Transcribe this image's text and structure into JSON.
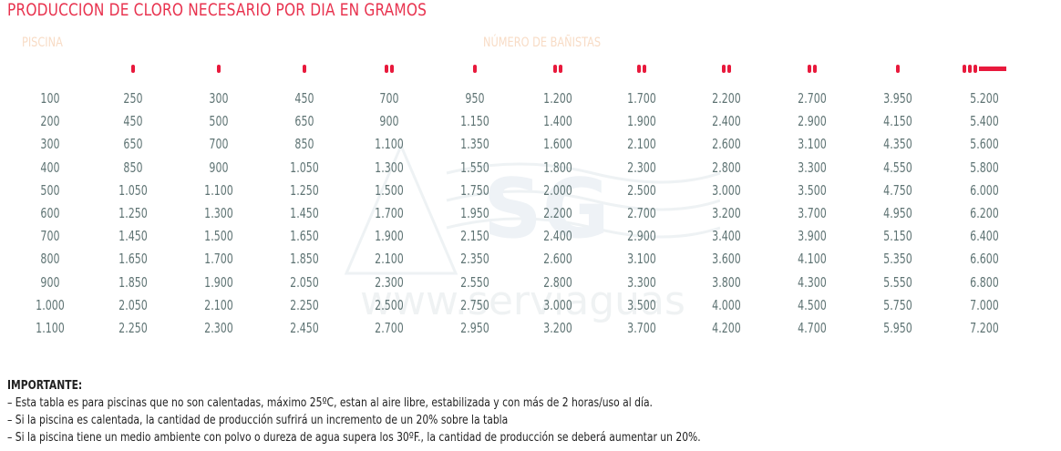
{
  "title": "PRODUCCION DE CLORO NECESARIO POR DIA EN GRAMOS",
  "headers": {
    "pool": "PISCINA",
    "bathers": "NÚMERO DE BAÑISTAS"
  },
  "colors": {
    "title": "#e8334f",
    "header": "#f8dcc6",
    "cells": "#5f7474",
    "marks": "#e8193c"
  },
  "watermark": {
    "logo": "SG",
    "url": "www.serviaguas"
  },
  "table": {
    "rows": [
      [
        "100",
        "250",
        "300",
        "450",
        "700",
        "950",
        "1.200",
        "1.700",
        "2.200",
        "2.700",
        "3.950",
        "5.200"
      ],
      [
        "200",
        "450",
        "500",
        "650",
        "900",
        "1.150",
        "1.400",
        "1.900",
        "2.400",
        "2.900",
        "4.150",
        "5.400"
      ],
      [
        "300",
        "650",
        "700",
        "850",
        "1.100",
        "1.350",
        "1.600",
        "2.100",
        "2.600",
        "3.100",
        "4.350",
        "5.600"
      ],
      [
        "400",
        "850",
        "900",
        "1.050",
        "1.300",
        "1.550",
        "1.800",
        "2.300",
        "2.800",
        "3.300",
        "4.550",
        "5.800"
      ],
      [
        "500",
        "1.050",
        "1.100",
        "1.250",
        "1.500",
        "1.750",
        "2.000",
        "2.500",
        "3.000",
        "3.500",
        "4.750",
        "6.000"
      ],
      [
        "600",
        "1.250",
        "1.300",
        "1.450",
        "1.700",
        "1.950",
        "2.200",
        "2.700",
        "3.200",
        "3.700",
        "4.950",
        "6.200"
      ],
      [
        "700",
        "1.450",
        "1.500",
        "1.650",
        "1.900",
        "2.150",
        "2.400",
        "2.900",
        "3.400",
        "3.900",
        "5.150",
        "6.400"
      ],
      [
        "800",
        "1.650",
        "1.700",
        "1.850",
        "2.100",
        "2.350",
        "2.600",
        "3.100",
        "3.600",
        "4.100",
        "5.350",
        "6.600"
      ],
      [
        "900",
        "1.850",
        "1.900",
        "2.050",
        "2.300",
        "2.550",
        "2.800",
        "3.300",
        "3.800",
        "4.300",
        "5.550",
        "6.800"
      ],
      [
        "1.000",
        "2.050",
        "2.100",
        "2.250",
        "2.500",
        "2.750",
        "3.000",
        "3.500",
        "4.000",
        "4.500",
        "5.750",
        "7.000"
      ],
      [
        "1.100",
        "2.250",
        "2.300",
        "2.450",
        "2.700",
        "2.950",
        "3.200",
        "3.700",
        "4.200",
        "4.700",
        "5.950",
        "7.200"
      ]
    ]
  },
  "notes": {
    "heading": "IMPORTANTE:",
    "lines": [
      "– Esta tabla es para piscinas que no son calentadas, máximo 25ºC, estan al aire libre, estabilizada y con más de 2 horas/uso al día.",
      "– Si la piscina es calentada, la cantidad de producción sufrirá un incremento de un 20% sobre la tabla",
      "– Si la piscina tiene un medio ambiente con polvo o  dureza de agua supera los 30ºF., la cantidad de producción se deberá aumentar un 20%."
    ]
  }
}
